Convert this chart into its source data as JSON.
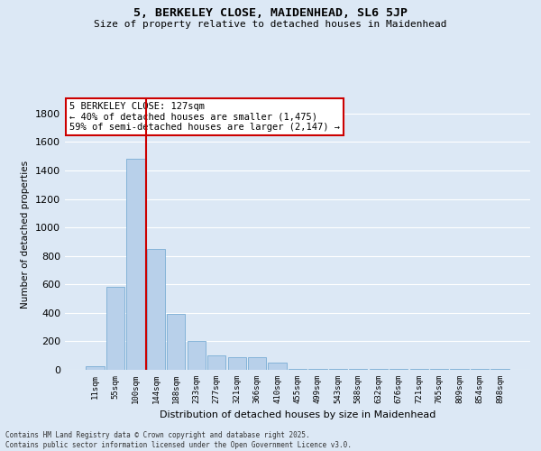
{
  "title": "5, BERKELEY CLOSE, MAIDENHEAD, SL6 5JP",
  "subtitle": "Size of property relative to detached houses in Maidenhead",
  "xlabel": "Distribution of detached houses by size in Maidenhead",
  "ylabel": "Number of detached properties",
  "categories": [
    "11sqm",
    "55sqm",
    "100sqm",
    "144sqm",
    "188sqm",
    "233sqm",
    "277sqm",
    "321sqm",
    "366sqm",
    "410sqm",
    "455sqm",
    "499sqm",
    "543sqm",
    "588sqm",
    "632sqm",
    "676sqm",
    "721sqm",
    "765sqm",
    "809sqm",
    "854sqm",
    "898sqm"
  ],
  "values": [
    25,
    580,
    1480,
    850,
    390,
    205,
    100,
    90,
    90,
    50,
    5,
    5,
    5,
    5,
    5,
    5,
    5,
    5,
    5,
    5,
    5
  ],
  "bar_color": "#b8d0ea",
  "bar_edge_color": "#7aadd4",
  "vline_color": "#cc0000",
  "vline_pos": 2.5,
  "ylim": [
    0,
    1900
  ],
  "yticks": [
    0,
    200,
    400,
    600,
    800,
    1000,
    1200,
    1400,
    1600,
    1800
  ],
  "annotation_title": "5 BERKELEY CLOSE: 127sqm",
  "annotation_line1": "← 40% of detached houses are smaller (1,475)",
  "annotation_line2": "59% of semi-detached houses are larger (2,147) →",
  "annotation_box_facecolor": "#ffffff",
  "annotation_box_edgecolor": "#cc0000",
  "background_color": "#dce8f5",
  "grid_color": "#ffffff",
  "footer_line1": "Contains HM Land Registry data © Crown copyright and database right 2025.",
  "footer_line2": "Contains public sector information licensed under the Open Government Licence v3.0."
}
